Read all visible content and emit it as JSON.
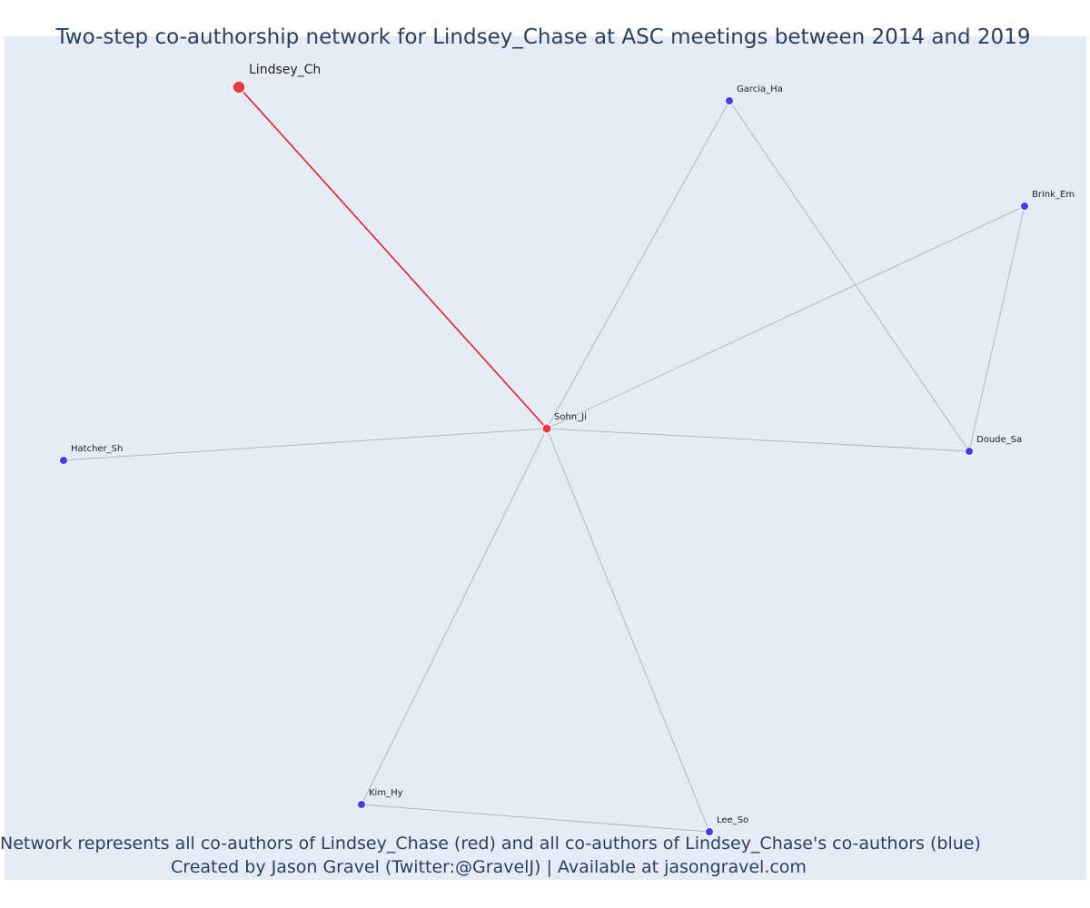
{
  "title": "Two-step co-authorship network for Lindsey_Chase at ASC meetings between 2014 and 2019",
  "caption": {
    "line1": "Network represents all co-authors of Lindsey_Chase (red) and all co-authors of Lindsey_Chase's co-authors (blue)",
    "line2": "Created by Jason Gravel (Twitter:@GravelJ) | Available at jasongravel.com"
  },
  "colors": {
    "plot_background": "#e5ecf6",
    "focal_node": "#eb3a41",
    "direct_coauthor": "#eb3a41",
    "second_step": "#4040e6",
    "focal_edge": "#e8141e",
    "other_edge": "#b3b7c7",
    "text": "#2a3f5f"
  },
  "network": {
    "nodes": [
      {
        "id": "Lindsey_Ch",
        "label": "Lindsey_Ch",
        "group": "focal"
      },
      {
        "id": "Sohn_Ji",
        "label": "Sohn_Ji",
        "group": "coauthor"
      },
      {
        "id": "Garcia_Ha",
        "label": "Garcia_Ha",
        "group": "second-step"
      },
      {
        "id": "Brink_Em",
        "label": "Brink_Em",
        "group": "second-step"
      },
      {
        "id": "Doude_Sa",
        "label": "Doude_Sa",
        "group": "second-step"
      },
      {
        "id": "Hatcher_Sh",
        "label": "Hatcher_Sh",
        "group": "second-step"
      },
      {
        "id": "Kim_Hy",
        "label": "Kim_Hy",
        "group": "second-step"
      },
      {
        "id": "Lee_So",
        "label": "Lee_So",
        "group": "second-step"
      }
    ],
    "edges": [
      {
        "source": "Lindsey_Ch",
        "target": "Sohn_Ji",
        "type": "focal"
      },
      {
        "source": "Sohn_Ji",
        "target": "Garcia_Ha",
        "type": "other"
      },
      {
        "source": "Sohn_Ji",
        "target": "Brink_Em",
        "type": "other"
      },
      {
        "source": "Sohn_Ji",
        "target": "Doude_Sa",
        "type": "other"
      },
      {
        "source": "Sohn_Ji",
        "target": "Hatcher_Sh",
        "type": "other"
      },
      {
        "source": "Sohn_Ji",
        "target": "Kim_Hy",
        "type": "other"
      },
      {
        "source": "Sohn_Ji",
        "target": "Lee_So",
        "type": "other"
      },
      {
        "source": "Garcia_Ha",
        "target": "Doude_Sa",
        "type": "other"
      },
      {
        "source": "Brink_Em",
        "target": "Doude_Sa",
        "type": "other"
      },
      {
        "source": "Kim_Hy",
        "target": "Lee_So",
        "type": "other"
      }
    ]
  }
}
